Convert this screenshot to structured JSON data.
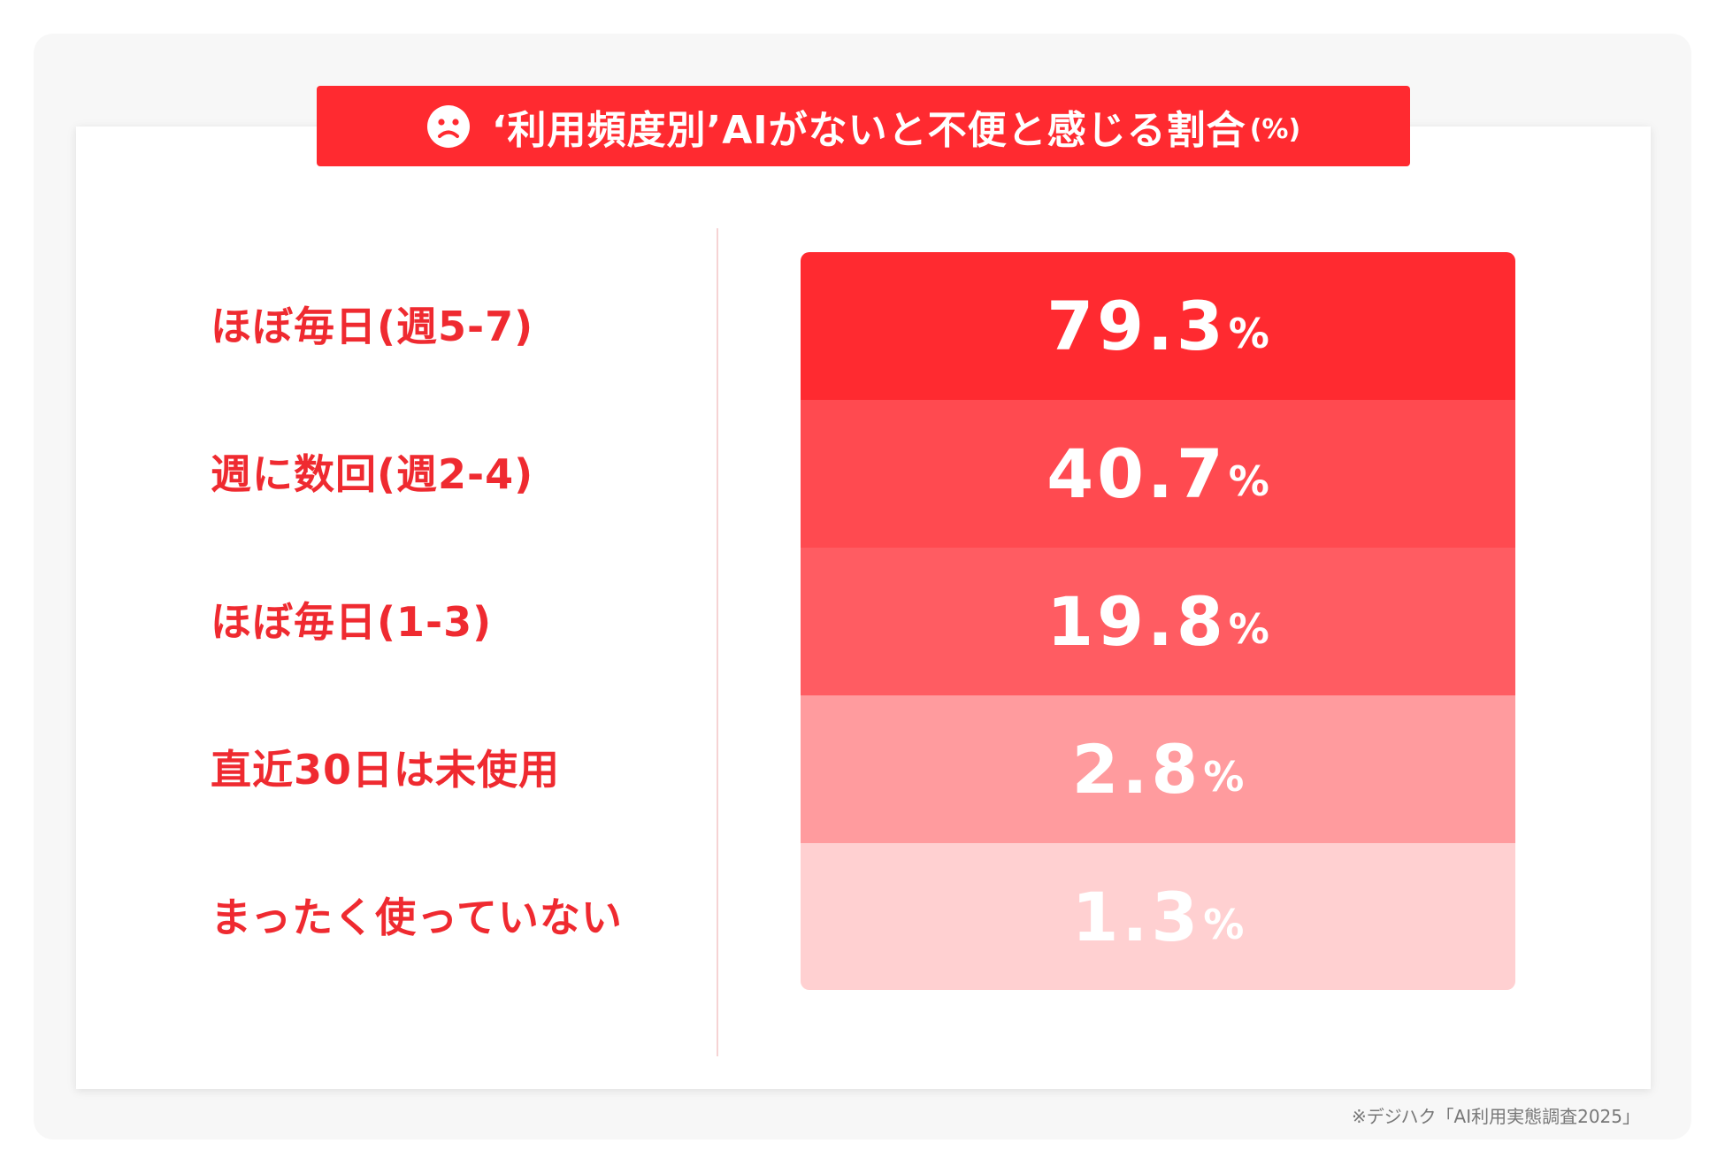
{
  "title": {
    "main": "‘利用頻度別’AIがないと不便と感じる割合",
    "suffix": "(%)",
    "icon": "sad-face-icon"
  },
  "chart_data": {
    "type": "bar",
    "title": "‘利用頻度別’AIがないと不便と感じる割合(%)",
    "categories": [
      "ほぼ毎日(週5-7)",
      "週に数回(週2-4)",
      "ほぼ毎日(1-3)",
      "直近30日は未使用",
      "まったく使っていない"
    ],
    "values": [
      79.3,
      40.7,
      19.8,
      2.8,
      1.3
    ],
    "value_labels": [
      "79.3",
      "40.7",
      "19.8",
      "2.8",
      "1.3"
    ],
    "unit": "%",
    "colors": [
      "#ff2a30",
      "#ff4a50",
      "#ff5c62",
      "#ff9b9e",
      "#ffd0d1"
    ],
    "xlabel": "",
    "ylabel": ""
  },
  "footnote": "※デジハク「AI利用実態調査2025」",
  "colors": {
    "accent": "#ff2a30",
    "label": "#ef2a30",
    "background_panel": "#f7f7f7",
    "divider": "#f6d3d4"
  }
}
